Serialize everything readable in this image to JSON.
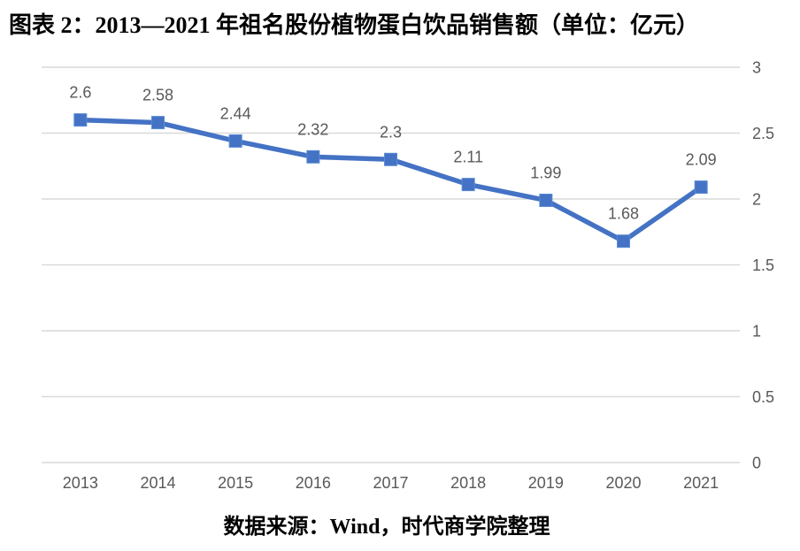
{
  "title": "图表 2：2013—2021 年祖名股份植物蛋白饮品销售额（单位：亿元）",
  "source_note": "数据来源：Wind，时代商学院整理",
  "colors": {
    "line": "#4472C4",
    "marker_fill": "#4472C4",
    "marker_border": "#5B8BD5",
    "gridline": "#D9D9D9",
    "axis_text": "#595959",
    "data_label_text": "#595959",
    "title_text": "#000000"
  },
  "chart_data": {
    "type": "line",
    "title": "图表 2：2013—2021 年祖名股份植物蛋白饮品销售额（单位：亿元）",
    "categories": [
      "2013",
      "2014",
      "2015",
      "2016",
      "2017",
      "2018",
      "2019",
      "2020",
      "2021"
    ],
    "values": [
      2.6,
      2.58,
      2.44,
      2.32,
      2.3,
      2.11,
      1.99,
      1.68,
      2.09
    ],
    "data_labels": [
      "2.6",
      "2.58",
      "2.44",
      "2.32",
      "2.3",
      "2.11",
      "1.99",
      "1.68",
      "2.09"
    ],
    "xlabel": "",
    "ylabel": "",
    "ylim": [
      0,
      3
    ],
    "yticks": [
      0,
      0.5,
      1,
      1.5,
      2,
      2.5,
      3
    ],
    "ytick_labels": [
      "0",
      "0.5",
      "1",
      "1.5",
      "2",
      "2.5",
      "3"
    ],
    "y_axis_side": "right",
    "grid": "horizontal",
    "legend": "none",
    "marker": "square",
    "line_color": "#4472C4",
    "source": "数据来源：Wind，时代商学院整理"
  }
}
